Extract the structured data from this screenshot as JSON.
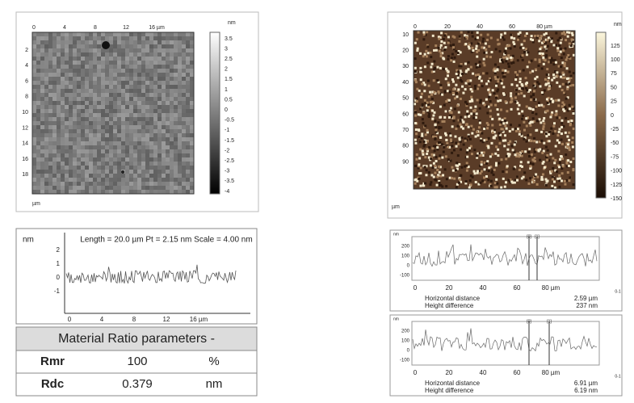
{
  "left_map": {
    "x_ticks": [
      "0",
      "4",
      "8",
      "12",
      "16 µm"
    ],
    "y_ticks": [
      "2",
      "4",
      "6",
      "8",
      "10",
      "12",
      "14",
      "16",
      "18"
    ],
    "axis_unit": "µm",
    "scale_unit": "nm",
    "scale_ticks": [
      "3.5",
      "3",
      "2.5",
      "2",
      "1.5",
      "1",
      "0.5",
      "0",
      "-0.5",
      "-1",
      "-1.5",
      "-2",
      "-2.5",
      "-3",
      "-3.5",
      "-4"
    ]
  },
  "right_map": {
    "x_ticks": [
      "0",
      "20",
      "40",
      "60",
      "80 µm"
    ],
    "y_ticks": [
      "10",
      "20",
      "30",
      "40",
      "50",
      "60",
      "70",
      "80",
      "90"
    ],
    "axis_unit": "µm",
    "scale_unit": "nm",
    "scale_ticks": [
      "125",
      "100",
      "75",
      "50",
      "25",
      "0",
      "-25",
      "-50",
      "-75",
      "-100",
      "-125",
      "-150"
    ]
  },
  "left_profile": {
    "y_unit": "nm",
    "header": "Length = 20.0 µm  Pt = 2.15 nm  Scale = 4.00 nm",
    "y_ticks": [
      "2",
      "1",
      "0",
      "-1"
    ],
    "x_ticks": [
      "0",
      "4",
      "8",
      "12",
      "16 µm"
    ]
  },
  "table": {
    "title": "Material Ratio parameters -",
    "rows": [
      [
        "Rmr",
        "100",
        "%"
      ],
      [
        "Rdc",
        "0.379",
        "nm"
      ]
    ]
  },
  "right_profiles": [
    {
      "y_unit": "nm",
      "y_ticks": [
        "200",
        "100",
        "0",
        "-100"
      ],
      "x_ticks": [
        "0",
        "20",
        "40",
        "60",
        "80 µm"
      ],
      "markers": [
        "[0]",
        "[1]"
      ],
      "corner": "0-1",
      "rows": [
        [
          "Horizontal distance",
          "2.59 µm"
        ],
        [
          "Height difference",
          "237 nm"
        ]
      ]
    },
    {
      "y_unit": "nm",
      "y_ticks": [
        "200",
        "100",
        "0",
        "-100"
      ],
      "x_ticks": [
        "0",
        "20",
        "40",
        "60",
        "80 µm"
      ],
      "markers": [
        "[0]",
        "[1]"
      ],
      "corner": "0-1",
      "rows": [
        [
          "Horizontal distance",
          "6.91 µm"
        ],
        [
          "Height difference",
          "6.19 nm"
        ]
      ]
    }
  ]
}
